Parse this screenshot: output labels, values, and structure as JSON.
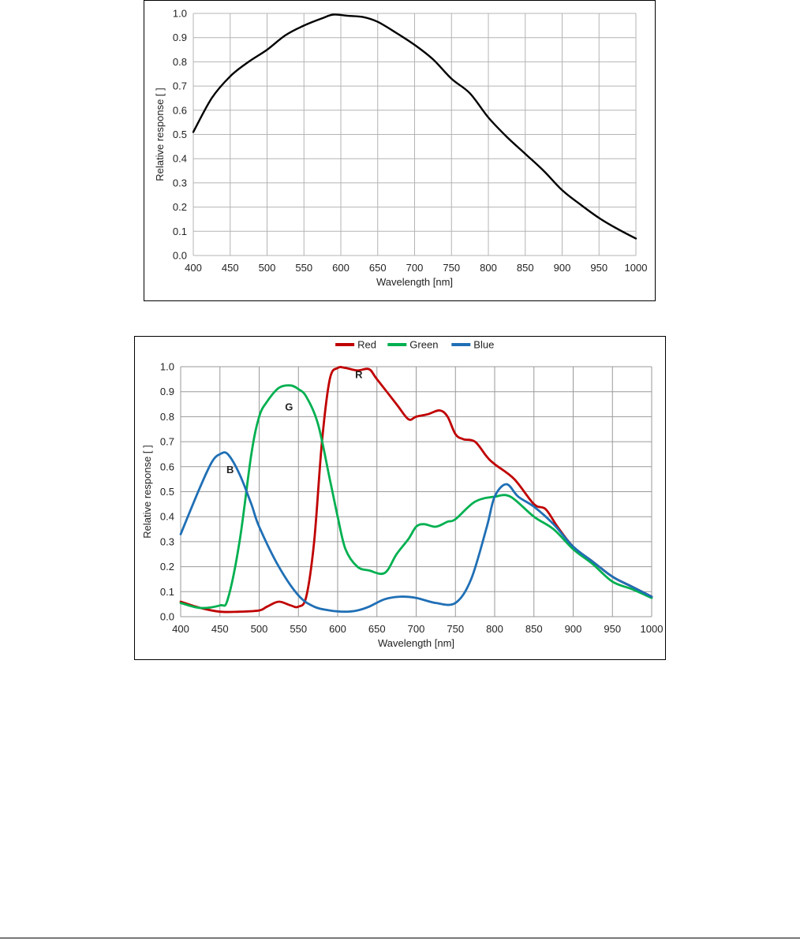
{
  "chart_data": [
    {
      "type": "line",
      "title": "",
      "xlabel": "Wavelength [nm]",
      "ylabel": "Relative response [ ]",
      "xlim": [
        400,
        1000
      ],
      "ylim": [
        0.0,
        1.0
      ],
      "xticks": [
        "400",
        "450",
        "500",
        "550",
        "600",
        "650",
        "700",
        "750",
        "800",
        "850",
        "900",
        "950",
        "1000"
      ],
      "yticks": [
        "0.0",
        "0.1",
        "0.2",
        "0.3",
        "0.4",
        "0.5",
        "0.6",
        "0.7",
        "0.8",
        "0.9",
        "1.0"
      ],
      "grid": true,
      "legend": "none",
      "series": [
        {
          "color": "#000000",
          "x": [
            400,
            425,
            450,
            475,
            500,
            525,
            550,
            575,
            590,
            610,
            630,
            650,
            675,
            700,
            725,
            750,
            775,
            800,
            825,
            850,
            875,
            900,
            925,
            950,
            975,
            1000
          ],
          "y": [
            0.51,
            0.65,
            0.74,
            0.8,
            0.85,
            0.91,
            0.95,
            0.98,
            0.995,
            0.99,
            0.985,
            0.965,
            0.92,
            0.87,
            0.81,
            0.73,
            0.67,
            0.57,
            0.49,
            0.42,
            0.35,
            0.27,
            0.21,
            0.155,
            0.11,
            0.07
          ]
        }
      ]
    },
    {
      "type": "line",
      "title": "",
      "xlabel": "Wavelength [nm]",
      "ylabel": "Relative response [ ]",
      "xlim": [
        400,
        1000
      ],
      "ylim": [
        0.0,
        1.0
      ],
      "xticks": [
        "400",
        "450",
        "500",
        "550",
        "600",
        "650",
        "700",
        "750",
        "800",
        "850",
        "900",
        "950",
        "1000"
      ],
      "yticks": [
        "0.0",
        "0.1",
        "0.2",
        "0.3",
        "0.4",
        "0.5",
        "0.6",
        "0.7",
        "0.8",
        "0.9",
        "1.0"
      ],
      "grid": true,
      "legend": "top-center",
      "series": [
        {
          "name": "Red",
          "color": "#c00000",
          "x": [
            400,
            425,
            450,
            475,
            500,
            510,
            525,
            540,
            550,
            560,
            570,
            580,
            590,
            600,
            610,
            625,
            640,
            650,
            675,
            690,
            700,
            715,
            730,
            740,
            750,
            760,
            775,
            790,
            800,
            825,
            850,
            865,
            880,
            900,
            925,
            950,
            975,
            1000
          ],
          "y": [
            0.06,
            0.035,
            0.02,
            0.02,
            0.025,
            0.04,
            0.06,
            0.045,
            0.04,
            0.08,
            0.3,
            0.7,
            0.95,
            0.995,
            0.995,
            0.985,
            0.99,
            0.95,
            0.85,
            0.79,
            0.8,
            0.81,
            0.825,
            0.8,
            0.73,
            0.71,
            0.7,
            0.64,
            0.61,
            0.55,
            0.45,
            0.43,
            0.36,
            0.28,
            0.22,
            0.16,
            0.12,
            0.08
          ]
        },
        {
          "name": "Green",
          "color": "#00b050",
          "x": [
            400,
            425,
            450,
            460,
            475,
            490,
            500,
            510,
            525,
            540,
            550,
            560,
            575,
            590,
            600,
            610,
            625,
            640,
            660,
            675,
            690,
            700,
            710,
            725,
            740,
            750,
            775,
            800,
            820,
            850,
            875,
            900,
            925,
            950,
            975,
            1000
          ],
          "y": [
            0.055,
            0.035,
            0.045,
            0.07,
            0.3,
            0.65,
            0.8,
            0.86,
            0.915,
            0.925,
            0.91,
            0.88,
            0.77,
            0.55,
            0.4,
            0.27,
            0.2,
            0.185,
            0.175,
            0.25,
            0.31,
            0.36,
            0.37,
            0.36,
            0.38,
            0.39,
            0.46,
            0.48,
            0.48,
            0.4,
            0.35,
            0.27,
            0.21,
            0.14,
            0.11,
            0.075
          ]
        },
        {
          "name": "Blue",
          "color": "#1f6fb5",
          "x": [
            400,
            425,
            440,
            450,
            460,
            475,
            490,
            500,
            525,
            550,
            570,
            590,
            610,
            625,
            640,
            660,
            680,
            700,
            725,
            750,
            770,
            790,
            800,
            815,
            830,
            850,
            875,
            900,
            925,
            950,
            975,
            1000
          ],
          "y": [
            0.33,
            0.52,
            0.62,
            0.65,
            0.65,
            0.57,
            0.45,
            0.36,
            0.2,
            0.085,
            0.04,
            0.025,
            0.02,
            0.025,
            0.04,
            0.07,
            0.08,
            0.075,
            0.055,
            0.055,
            0.15,
            0.36,
            0.48,
            0.53,
            0.48,
            0.44,
            0.37,
            0.28,
            0.22,
            0.16,
            0.12,
            0.08
          ]
        }
      ],
      "annotations": [
        {
          "text": "R",
          "x": 627,
          "y": 0.97
        },
        {
          "text": "G",
          "x": 538,
          "y": 0.84
        },
        {
          "text": "B",
          "x": 463,
          "y": 0.59
        }
      ]
    }
  ]
}
